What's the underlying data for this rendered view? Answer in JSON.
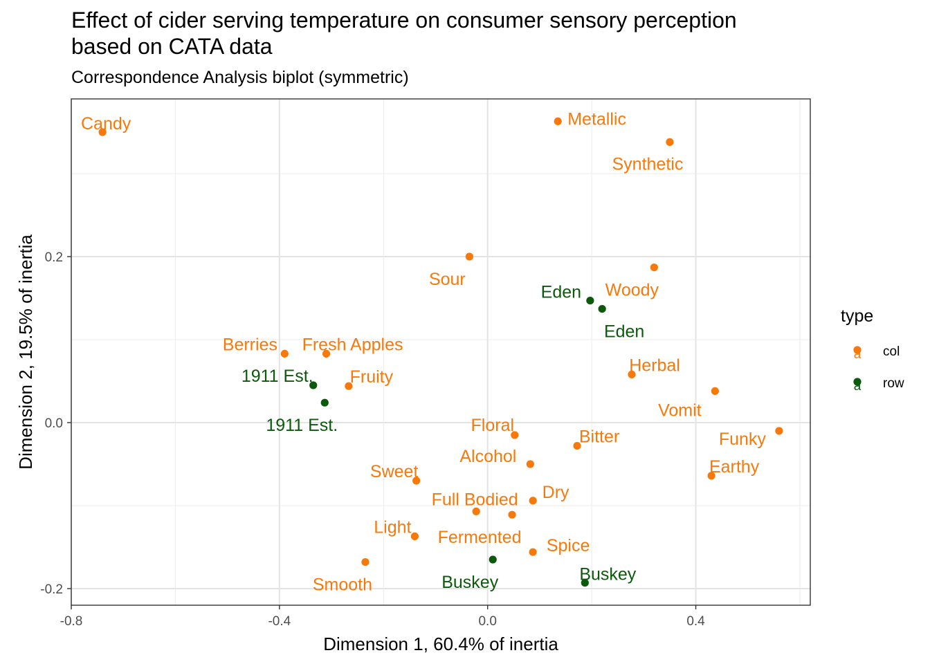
{
  "chart_data": {
    "type": "scatter",
    "title_line1": "Effect of cider serving temperature on consumer sensory perception",
    "title_line2": "based on CATA data",
    "subtitle": "Correspondence Analysis biplot (symmetric)",
    "xlabel": "Dimension 1, 60.4% of inertia",
    "ylabel": "Dimension 2, 19.5% of inertia",
    "xlim": [
      -0.8,
      0.62
    ],
    "ylim": [
      -0.22,
      0.39
    ],
    "xticks": [
      -0.8,
      -0.4,
      0.0,
      0.4
    ],
    "xtick_labels": [
      "-0.8",
      "-0.4",
      "0.0",
      "0.4"
    ],
    "yticks": [
      -0.2,
      0.0,
      0.2
    ],
    "ytick_labels": [
      "-0.2",
      "0.0",
      "0.2"
    ],
    "grid": true,
    "legend": {
      "title": "type",
      "placement": "right",
      "entries": [
        {
          "label": "col",
          "key_glyph": "a",
          "color": "#F8790B"
        },
        {
          "label": "row",
          "key_glyph": "a",
          "color": "#0B5A0B"
        }
      ]
    },
    "series": [
      {
        "name": "col",
        "color": "#F8790B",
        "points": [
          {
            "label": "Candy",
            "x": -0.74,
            "y": 0.35
          },
          {
            "label": "Metallic",
            "x": 0.135,
            "y": 0.363
          },
          {
            "label": "Synthetic",
            "x": 0.35,
            "y": 0.338
          },
          {
            "label": "Sour",
            "x": -0.035,
            "y": 0.2
          },
          {
            "label": "Woody",
            "x": 0.32,
            "y": 0.187
          },
          {
            "label": "Berries",
            "x": -0.39,
            "y": 0.083
          },
          {
            "label": "Fresh Apples",
            "x": -0.31,
            "y": 0.083
          },
          {
            "label": "Fruity",
            "x": -0.267,
            "y": 0.044
          },
          {
            "label": "Herbal",
            "x": 0.277,
            "y": 0.058
          },
          {
            "label": "Vomit",
            "x": 0.437,
            "y": 0.038
          },
          {
            "label": "Floral",
            "x": 0.052,
            "y": -0.015
          },
          {
            "label": "Funky",
            "x": 0.56,
            "y": -0.01
          },
          {
            "label": "Bitter",
            "x": 0.172,
            "y": -0.028
          },
          {
            "label": "Alcohol",
            "x": 0.082,
            "y": -0.05
          },
          {
            "label": "Earthy",
            "x": 0.43,
            "y": -0.064
          },
          {
            "label": "Sweet",
            "x": -0.137,
            "y": -0.07
          },
          {
            "label": "Dry",
            "x": 0.087,
            "y": -0.094
          },
          {
            "label": "Full Bodied",
            "x": -0.022,
            "y": -0.107
          },
          {
            "label": "Fermented",
            "x": 0.047,
            "y": -0.111
          },
          {
            "label": "Light",
            "x": -0.14,
            "y": -0.137
          },
          {
            "label": "Spice",
            "x": 0.087,
            "y": -0.156
          },
          {
            "label": "Smooth",
            "x": -0.235,
            "y": -0.168
          }
        ]
      },
      {
        "name": "row",
        "color": "#0B5A0B",
        "points": [
          {
            "label": "Eden",
            "x": 0.197,
            "y": 0.147
          },
          {
            "label": "Eden",
            "x": 0.22,
            "y": 0.137
          },
          {
            "label": "1911 Est.",
            "x": -0.335,
            "y": 0.045
          },
          {
            "label": "1911 Est.",
            "x": -0.313,
            "y": 0.024
          },
          {
            "label": "Buskey",
            "x": 0.01,
            "y": -0.165
          },
          {
            "label": "Buskey",
            "x": 0.187,
            "y": -0.193
          }
        ]
      }
    ]
  }
}
